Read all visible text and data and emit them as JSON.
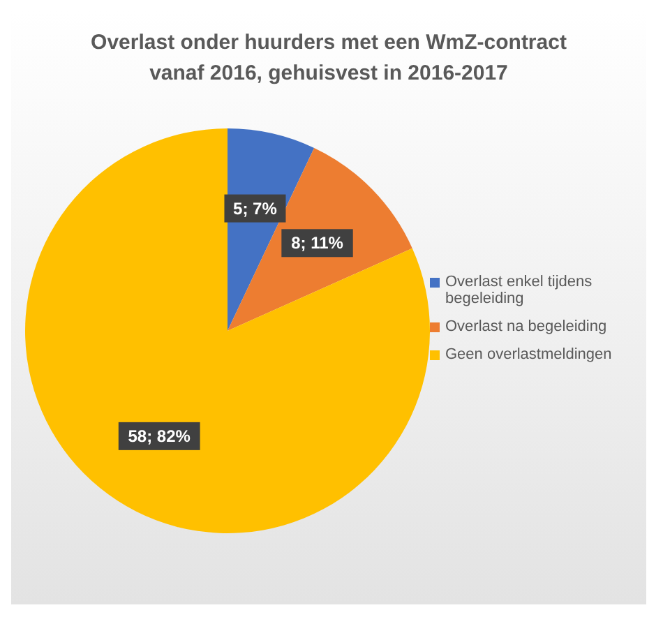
{
  "chart_data": {
    "type": "pie",
    "title": "Overlast onder huurders met een WmZ-contract vanaf 2016, gehuisvest in 2016-2017",
    "categories": [
      "Overlast enkel tijdens begeleiding",
      "Overlast na begeleiding",
      "Geen overlastmeldingen"
    ],
    "values": [
      5,
      8,
      58
    ],
    "colors": [
      "#4472c4",
      "#ed7d31",
      "#ffc000"
    ],
    "value_labels": [
      "5; 7%",
      "8; 11%",
      "58; 82%"
    ],
    "legend": "right"
  }
}
